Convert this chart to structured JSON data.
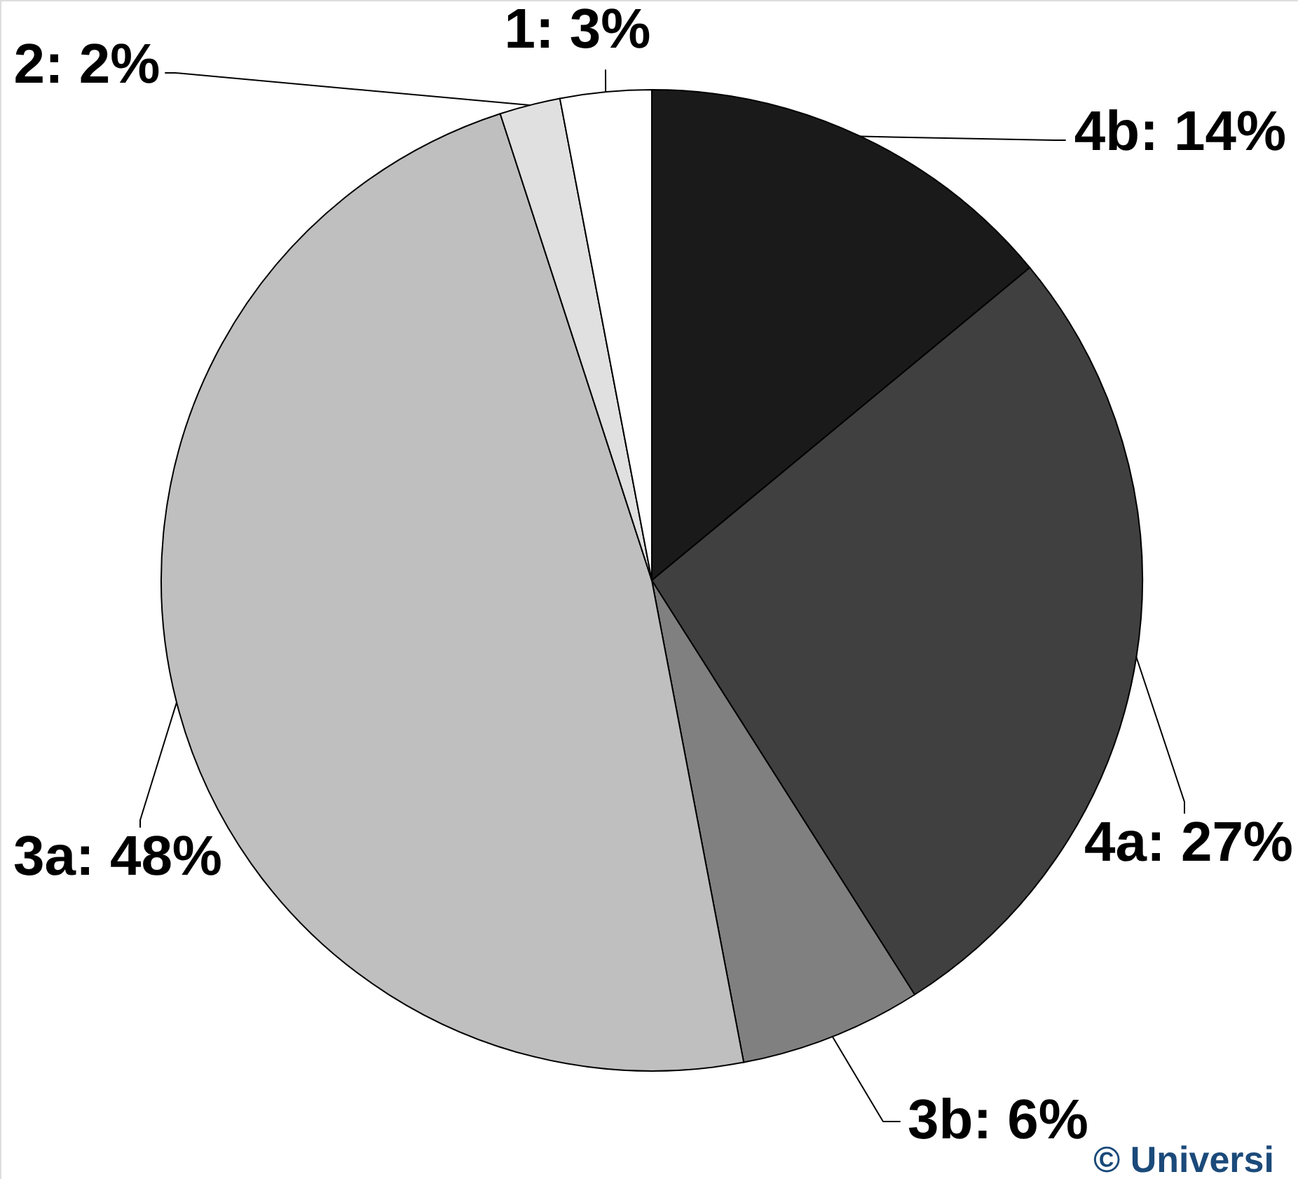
{
  "chart_data": {
    "type": "pie",
    "categories": [
      "4b",
      "4a",
      "3b",
      "3a",
      "2",
      "1"
    ],
    "values": [
      14,
      27,
      6,
      48,
      2,
      3
    ],
    "colors": [
      "#1a1a1a",
      "#404040",
      "#808080",
      "#bfbfbf",
      "#e0e0e0",
      "#ffffff"
    ],
    "value_labels": [
      "14%",
      "27%",
      "6%",
      "48%",
      "2%",
      "3%"
    ],
    "annotations": [
      "© Universi"
    ]
  }
}
